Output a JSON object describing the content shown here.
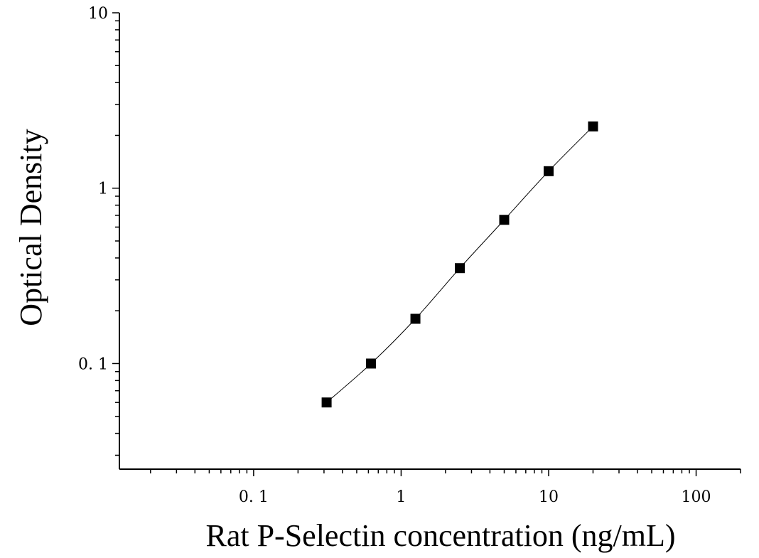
{
  "chart_data": {
    "type": "scatter",
    "title": "",
    "xlabel": "Rat P-Selectin concentration (ng/mL)",
    "ylabel": "Optical Density",
    "x_scale": "log",
    "y_scale": "log",
    "xlim": [
      0.0123,
      200
    ],
    "ylim": [
      0.025,
      10
    ],
    "x_ticks": [
      0.1,
      1,
      10,
      100
    ],
    "x_tick_labels": [
      "0. 1",
      "1",
      "10",
      "100"
    ],
    "y_ticks": [
      0.1,
      1,
      10
    ],
    "y_tick_labels": [
      "0. 1",
      "1",
      "10"
    ],
    "grid": false,
    "legend": "none",
    "series": [
      {
        "x": [
          0.3125,
          0.625,
          1.25,
          2.5,
          5,
          10,
          20
        ],
        "y": [
          0.06,
          0.1,
          0.18,
          0.35,
          0.66,
          1.25,
          2.25
        ],
        "marker": "square",
        "fit_line": true
      }
    ],
    "colors": {
      "marker": "#000000",
      "line": "#000000",
      "axis": "#000000"
    }
  }
}
